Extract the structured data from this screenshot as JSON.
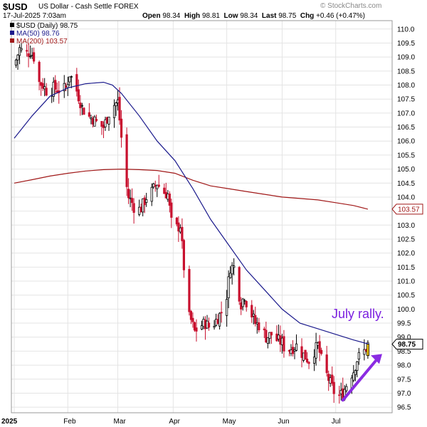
{
  "header": {
    "symbol": "$USD",
    "name": "US Dollar - Cash Settle",
    "exchange": "FOREX",
    "source": "© StockCharts.com",
    "date": "17-Jul-2025 7:03am",
    "ohlc": {
      "open_label": "Open",
      "open": "98.34",
      "high_label": "High",
      "high": "98.81",
      "low_label": "Low",
      "low": "98.34",
      "last_label": "Last",
      "last": "98.75",
      "chg_label": "Chg",
      "chg": "+0.46 (+0.47%)"
    }
  },
  "legend": [
    {
      "label": "$USD (Daily) 98.75",
      "color": "#000000"
    },
    {
      "label": "MA(50) 98.76",
      "color": "#1b1a8c"
    },
    {
      "label": "MA(200) 103.57",
      "color": "#a01818"
    }
  ],
  "annotation": "July rally.",
  "colors": {
    "up": "#000000",
    "down": "#c8102e",
    "ma50": "#1b1a8c",
    "ma200": "#a01818",
    "arrow": "#8a2be2",
    "last_fill": "#f0c400"
  },
  "chart_data": {
    "type": "candlestick",
    "ylim": [
      96.3,
      110.3
    ],
    "y_ticks": [
      "96.5",
      "97.0",
      "97.5",
      "98.0",
      "98.5",
      "99.0",
      "99.5",
      "100.0",
      "100.5",
      "101.0",
      "101.5",
      "102.0",
      "102.5",
      "103.0",
      "103.5",
      "104.0",
      "104.5",
      "105.0",
      "105.5",
      "106.0",
      "106.5",
      "107.0",
      "107.5",
      "108.0",
      "108.5",
      "109.0",
      "109.5",
      "110.0"
    ],
    "x_labels": [
      {
        "label": "2025",
        "day": 0
      },
      {
        "label": "Feb",
        "day": 30
      },
      {
        "label": "Mar",
        "day": 58
      },
      {
        "label": "Apr",
        "day": 89
      },
      {
        "label": "May",
        "day": 119
      },
      {
        "label": "Jun",
        "day": 150
      },
      {
        "label": "Jul",
        "day": 180
      }
    ],
    "price_label": "98.75",
    "ma200_label": "103.57",
    "close_keypoints": [
      [
        1,
        108.9
      ],
      [
        3,
        109.3
      ],
      [
        6,
        109.1
      ],
      [
        9,
        109.2
      ],
      [
        12,
        108.9
      ],
      [
        14,
        108.1
      ],
      [
        16,
        108.0
      ],
      [
        19,
        107.7
      ],
      [
        22,
        107.9
      ],
      [
        26,
        107.8
      ],
      [
        29,
        107.9
      ],
      [
        31,
        108.4
      ],
      [
        34,
        108.0
      ],
      [
        36,
        107.6
      ],
      [
        38,
        107.2
      ],
      [
        41,
        106.9
      ],
      [
        44,
        106.8
      ],
      [
        47,
        106.6
      ],
      [
        50,
        106.5
      ],
      [
        53,
        107.0
      ],
      [
        56,
        107.3
      ],
      [
        58,
        107.4
      ],
      [
        61,
        105.5
      ],
      [
        62,
        104.7
      ],
      [
        64,
        104.0
      ],
      [
        66,
        103.8
      ],
      [
        68,
        103.5
      ],
      [
        71,
        103.6
      ],
      [
        74,
        104.0
      ],
      [
        77,
        104.2
      ],
      [
        80,
        104.5
      ],
      [
        83,
        104.2
      ],
      [
        86,
        104.1
      ],
      [
        89,
        102.6
      ],
      [
        91,
        102.9
      ],
      [
        93,
        103.0
      ],
      [
        95,
        101.5
      ],
      [
        97,
        99.8
      ],
      [
        99,
        99.6
      ],
      [
        101,
        99.2
      ],
      [
        104,
        99.4
      ],
      [
        107,
        99.5
      ],
      [
        110,
        99.3
      ],
      [
        113,
        99.6
      ],
      [
        116,
        99.9
      ],
      [
        119,
        100.5
      ],
      [
        121,
        101.5
      ],
      [
        123,
        101.5
      ],
      [
        125,
        100.8
      ],
      [
        127,
        100.2
      ],
      [
        129,
        100.5
      ],
      [
        131,
        100.0
      ],
      [
        133,
        99.8
      ],
      [
        135,
        99.5
      ],
      [
        138,
        99.4
      ],
      [
        141,
        99.0
      ],
      [
        144,
        99.1
      ],
      [
        147,
        98.9
      ],
      [
        150,
        98.8
      ],
      [
        152,
        98.5
      ],
      [
        155,
        98.6
      ],
      [
        158,
        98.7
      ],
      [
        160,
        98.5
      ],
      [
        163,
        98.3
      ],
      [
        166,
        98.1
      ],
      [
        168,
        98.5
      ],
      [
        170,
        98.7
      ],
      [
        172,
        98.2
      ],
      [
        174,
        97.8
      ],
      [
        176,
        97.5
      ],
      [
        178,
        97.2
      ],
      [
        180,
        96.9
      ],
      [
        182,
        96.9
      ],
      [
        184,
        97.0
      ],
      [
        186,
        97.3
      ],
      [
        188,
        97.6
      ],
      [
        190,
        97.8
      ],
      [
        192,
        98.2
      ],
      [
        194,
        98.4
      ],
      [
        196,
        98.5
      ],
      [
        198,
        98.75
      ]
    ],
    "ma50_keypoints": [
      [
        0,
        106.1
      ],
      [
        10,
        106.9
      ],
      [
        20,
        107.6
      ],
      [
        30,
        107.9
      ],
      [
        40,
        108.05
      ],
      [
        50,
        108.1
      ],
      [
        55,
        108.0
      ],
      [
        60,
        107.7
      ],
      [
        70,
        106.9
      ],
      [
        80,
        106.0
      ],
      [
        90,
        105.3
      ],
      [
        100,
        104.3
      ],
      [
        110,
        103.2
      ],
      [
        120,
        102.3
      ],
      [
        130,
        101.4
      ],
      [
        140,
        100.7
      ],
      [
        150,
        100.0
      ],
      [
        160,
        99.5
      ],
      [
        170,
        99.3
      ],
      [
        180,
        99.1
      ],
      [
        190,
        98.9
      ],
      [
        198,
        98.76
      ]
    ],
    "ma200_keypoints": [
      [
        0,
        104.5
      ],
      [
        10,
        104.62
      ],
      [
        20,
        104.75
      ],
      [
        30,
        104.85
      ],
      [
        40,
        104.93
      ],
      [
        50,
        104.98
      ],
      [
        60,
        105.0
      ],
      [
        70,
        104.98
      ],
      [
        80,
        104.95
      ],
      [
        90,
        104.85
      ],
      [
        100,
        104.6
      ],
      [
        110,
        104.4
      ],
      [
        120,
        104.3
      ],
      [
        130,
        104.2
      ],
      [
        140,
        104.1
      ],
      [
        150,
        104.0
      ],
      [
        160,
        103.95
      ],
      [
        170,
        103.9
      ],
      [
        180,
        103.8
      ],
      [
        190,
        103.7
      ],
      [
        198,
        103.57
      ]
    ]
  }
}
